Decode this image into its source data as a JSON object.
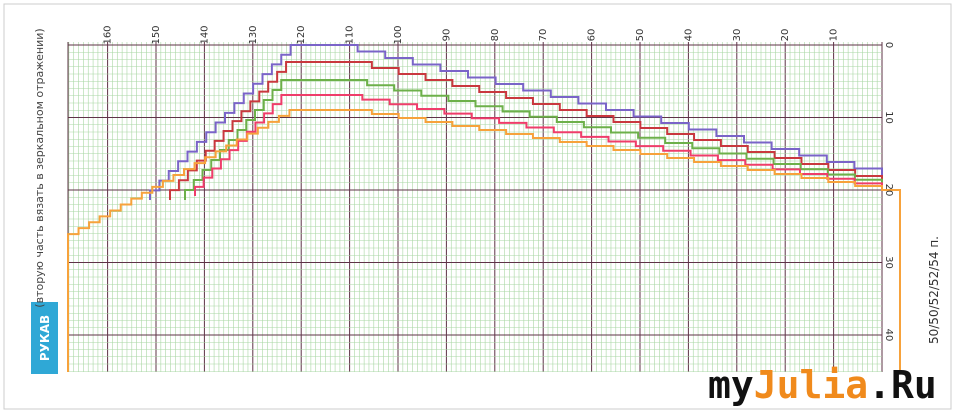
{
  "label": "РУКАВ",
  "note": "(вторую часть вязать в зеркальном отражении)",
  "stitches": "50/50/52/52/54 п.",
  "column_numbers": [
    160,
    150,
    140,
    130,
    120,
    110,
    100,
    90,
    80,
    70,
    60,
    50,
    40,
    30,
    20,
    10
  ],
  "row_numbers": [
    0,
    10,
    20,
    30,
    40
  ],
  "watermark": {
    "my": "my",
    "julia": "Julia",
    "ru": ".Ru"
  }
}
